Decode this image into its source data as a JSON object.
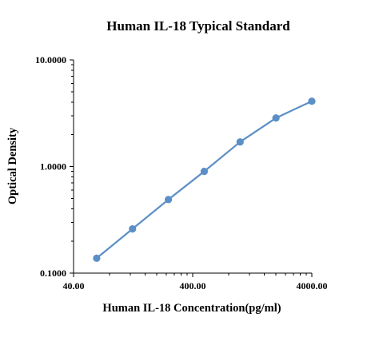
{
  "chart_data": {
    "type": "line",
    "title": "Human IL-18 Typical Standard",
    "xlabel": "Human IL-18 Concentration(pg/ml)",
    "ylabel": "Optical Density",
    "x_scale": "log",
    "y_scale": "log",
    "xlim": [
      40,
      4000
    ],
    "ylim": [
      0.1,
      10
    ],
    "x_ticks": [
      40,
      400,
      4000
    ],
    "x_tick_labels": [
      "40.00",
      "400.00",
      "4000.00"
    ],
    "y_ticks": [
      0.1,
      1,
      10
    ],
    "y_tick_labels": [
      "0.1000",
      "1.0000",
      "10.0000"
    ],
    "grid": false,
    "legend": "none",
    "color": "#5B8FC7",
    "series": [
      {
        "x": [
          62.5,
          125,
          250,
          500,
          1000,
          2000,
          4000
        ],
        "y": [
          0.138,
          0.26,
          0.49,
          0.9,
          1.7,
          2.85,
          4.1
        ]
      }
    ]
  }
}
